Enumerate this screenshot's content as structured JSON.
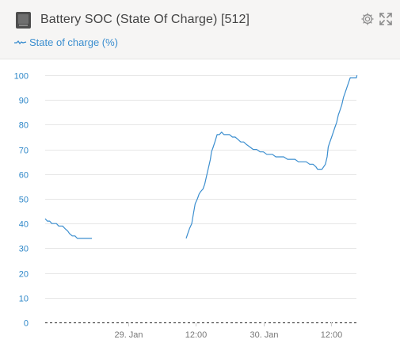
{
  "header": {
    "title": "Battery SOC (State Of Charge) [512]",
    "icons": {
      "device": "battery-device-icon",
      "settings": "gear-icon",
      "expand": "expand-icon"
    }
  },
  "legend": {
    "label": "State of charge (%)",
    "color": "#3b8ecf"
  },
  "chart_data": {
    "type": "line",
    "title": "Battery SOC (State Of Charge) [512]",
    "xlabel": "",
    "ylabel": "",
    "x_unit": "hours since 29 Jan 00:00",
    "ylim": [
      0,
      100
    ],
    "xlim": [
      -14.7,
      40.5
    ],
    "y_ticks": [
      0,
      10,
      20,
      30,
      40,
      50,
      60,
      70,
      80,
      90,
      100
    ],
    "x_ticks": [
      {
        "value": 0,
        "label": "29. Jan"
      },
      {
        "value": 12,
        "label": "12:00"
      },
      {
        "value": 24,
        "label": "30. Jan"
      },
      {
        "value": 36,
        "label": "12:00"
      }
    ],
    "grid": "horizontal",
    "baseline": {
      "value": 0,
      "style": "dashed"
    },
    "series": [
      {
        "name": "State of charge (%)",
        "color": "#3b8ecf",
        "segments": [
          [
            [
              -14.7,
              42
            ],
            [
              -14.3,
              41
            ],
            [
              -13.9,
              41
            ],
            [
              -13.5,
              40
            ],
            [
              -12.7,
              40
            ],
            [
              -12.3,
              39
            ],
            [
              -11.6,
              39
            ],
            [
              -11.2,
              38
            ],
            [
              -10.7,
              37
            ],
            [
              -10.4,
              36
            ],
            [
              -9.9,
              35
            ],
            [
              -9.4,
              35
            ],
            [
              -9.0,
              34
            ],
            [
              -6.7,
              34
            ],
            [
              -6.4,
              34
            ]
          ],
          [
            [
              10.3,
              34
            ],
            [
              10.6,
              36
            ],
            [
              10.9,
              38
            ],
            [
              11.3,
              40
            ],
            [
              11.6,
              44
            ],
            [
              11.9,
              48
            ],
            [
              12.3,
              50
            ],
            [
              12.6,
              52
            ],
            [
              12.9,
              53
            ],
            [
              13.3,
              54
            ],
            [
              13.6,
              56
            ],
            [
              13.9,
              59
            ],
            [
              14.3,
              63
            ],
            [
              14.6,
              66
            ],
            [
              14.8,
              69
            ],
            [
              15.1,
              71
            ],
            [
              15.4,
              73
            ],
            [
              15.8,
              76
            ],
            [
              16.2,
              76
            ],
            [
              16.6,
              77
            ],
            [
              17.0,
              76
            ],
            [
              17.5,
              76
            ],
            [
              18.0,
              76
            ],
            [
              18.5,
              75
            ],
            [
              19.0,
              75
            ],
            [
              19.5,
              74
            ],
            [
              20.0,
              73
            ],
            [
              20.5,
              73
            ],
            [
              21.0,
              72
            ],
            [
              21.6,
              71
            ],
            [
              22.2,
              70
            ],
            [
              22.8,
              70
            ],
            [
              23.4,
              69
            ],
            [
              24.0,
              69
            ],
            [
              24.6,
              68
            ],
            [
              25.6,
              68
            ],
            [
              26.2,
              67
            ],
            [
              27.6,
              67
            ],
            [
              28.3,
              66
            ],
            [
              29.6,
              66
            ],
            [
              30.2,
              65
            ],
            [
              31.6,
              65
            ],
            [
              32.2,
              64
            ],
            [
              32.8,
              64
            ],
            [
              33.3,
              63
            ],
            [
              33.6,
              62
            ],
            [
              34.4,
              62
            ],
            [
              34.7,
              63
            ],
            [
              35.0,
              64
            ],
            [
              35.3,
              67
            ],
            [
              35.5,
              71
            ],
            [
              35.8,
              73
            ],
            [
              36.1,
              75
            ],
            [
              36.4,
              77
            ],
            [
              36.7,
              79
            ],
            [
              37.0,
              81
            ],
            [
              37.3,
              84
            ],
            [
              37.6,
              86
            ],
            [
              37.9,
              88
            ],
            [
              38.2,
              91
            ],
            [
              38.5,
              93
            ],
            [
              38.8,
              95
            ],
            [
              39.1,
              97
            ],
            [
              39.4,
              99
            ],
            [
              40.5,
              99
            ],
            [
              40.6,
              100
            ]
          ]
        ]
      }
    ]
  }
}
